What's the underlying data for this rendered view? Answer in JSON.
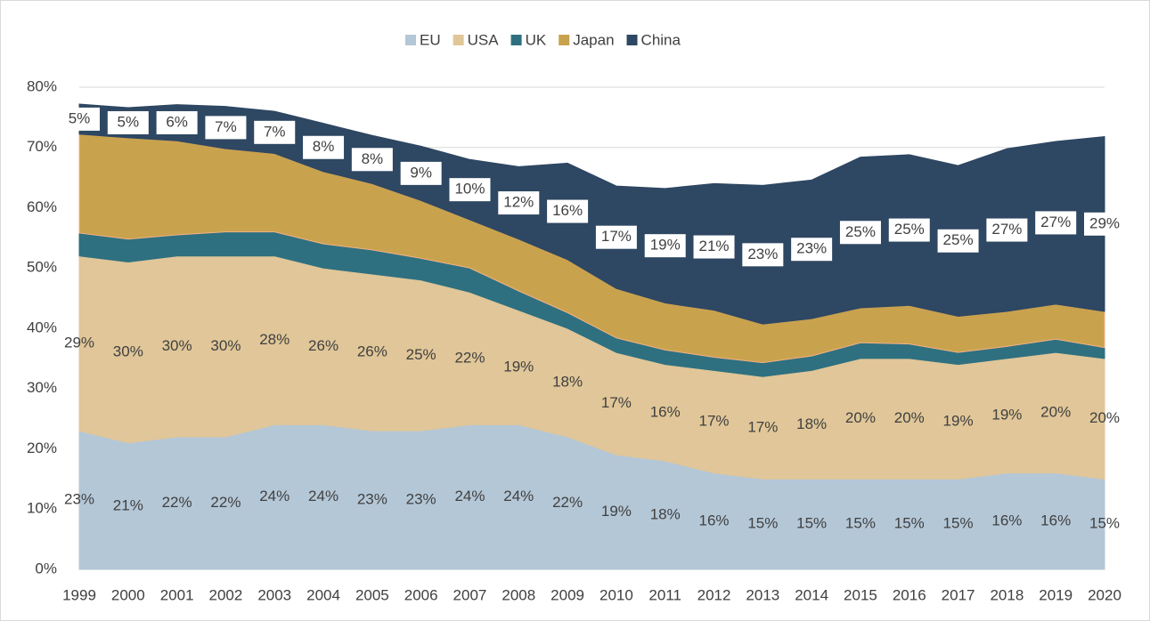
{
  "chart_data": {
    "type": "stacked_area",
    "x": [
      "1999",
      "2000",
      "2001",
      "2002",
      "2003",
      "2004",
      "2005",
      "2006",
      "2007",
      "2008",
      "2009",
      "2010",
      "2011",
      "2012",
      "2013",
      "2014",
      "2015",
      "2016",
      "2017",
      "2018",
      "2019",
      "2020"
    ],
    "series": [
      {
        "name": "EU",
        "color": "#b4c7d7",
        "values": [
          23,
          21,
          22,
          22,
          24,
          24,
          23,
          23,
          24,
          24,
          22,
          19,
          18,
          16,
          15,
          15,
          15,
          15,
          15,
          16,
          16,
          15
        ],
        "value_labels": [
          "23%",
          "21%",
          "22%",
          "22%",
          "24%",
          "24%",
          "23%",
          "23%",
          "24%",
          "24%",
          "22%",
          "19%",
          "18%",
          "16%",
          "15%",
          "15%",
          "15%",
          "15%",
          "15%",
          "16%",
          "16%",
          "15%"
        ]
      },
      {
        "name": "USA",
        "color": "#e0c698",
        "values": [
          29,
          30,
          30,
          30,
          28,
          26,
          26,
          25,
          22,
          19,
          18,
          17,
          16,
          17,
          17,
          18,
          20,
          20,
          19,
          19,
          20,
          20
        ],
        "value_labels": [
          "29%",
          "30%",
          "30%",
          "30%",
          "28%",
          "26%",
          "26%",
          "25%",
          "22%",
          "19%",
          "18%",
          "17%",
          "16%",
          "17%",
          "17%",
          "18%",
          "20%",
          "20%",
          "19%",
          "19%",
          "20%",
          "20%"
        ]
      },
      {
        "name": "UK",
        "color": "#2e7080",
        "values": [
          3.8,
          3.8,
          3.5,
          4,
          4,
          4,
          4,
          3.6,
          4,
          3.2,
          2.6,
          2.4,
          2.4,
          2.2,
          2.3,
          2.4,
          2.6,
          2.4,
          2,
          2,
          2.2,
          1.8
        ]
      },
      {
        "name": "Japan",
        "color": "#c9a24e",
        "values": [
          16.4,
          16.8,
          15.6,
          13.8,
          13,
          12,
          11,
          9.6,
          8,
          8.6,
          8.8,
          8.2,
          7.8,
          7.8,
          6.4,
          6.2,
          5.8,
          6.4,
          6,
          5.8,
          5.8,
          6
        ]
      },
      {
        "name": "China",
        "color": "#2e4762",
        "values": [
          5,
          5,
          6,
          7,
          7,
          8,
          8,
          9,
          10,
          12,
          16,
          17,
          19,
          21,
          23,
          23,
          25,
          25,
          25,
          27,
          27,
          29
        ],
        "value_labels": [
          "5%",
          "5%",
          "6%",
          "7%",
          "7%",
          "8%",
          "8%",
          "9%",
          "10%",
          "12%",
          "16%",
          "17%",
          "19%",
          "21%",
          "23%",
          "23%",
          "25%",
          "25%",
          "25%",
          "27%",
          "27%",
          "29%"
        ]
      }
    ],
    "ylim": [
      0,
      80
    ],
    "yticks": [
      {
        "value": 0,
        "label": "0%"
      },
      {
        "value": 10,
        "label": "10%"
      },
      {
        "value": 20,
        "label": "20%"
      },
      {
        "value": 30,
        "label": "30%"
      },
      {
        "value": 40,
        "label": "40%"
      },
      {
        "value": 50,
        "label": "50%"
      },
      {
        "value": 60,
        "label": "60%"
      },
      {
        "value": 70,
        "label": "70%"
      },
      {
        "value": 80,
        "label": "80%"
      }
    ],
    "grid": true,
    "legend": "top"
  }
}
